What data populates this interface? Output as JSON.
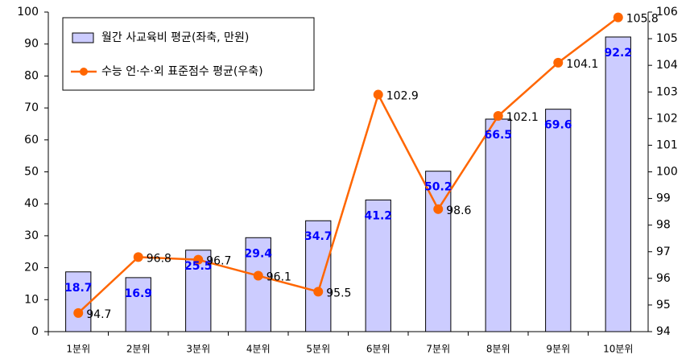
{
  "chart_data": {
    "type": "bar",
    "categories": [
      "1분위",
      "2분위",
      "3분위",
      "4분위",
      "5분위",
      "6분위",
      "7분위",
      "8분위",
      "9분위",
      "10분위"
    ],
    "series": [
      {
        "name": "월간 사교육비 평균(좌축, 만원)",
        "type": "bar",
        "color": "#ccccff",
        "values": [
          18.7,
          16.9,
          25.5,
          29.4,
          34.7,
          41.2,
          50.2,
          66.5,
          69.6,
          92.2
        ]
      },
      {
        "name": "수능 언·수·외 표준점수 평균(우축)",
        "type": "line",
        "axis": "y2",
        "color": "#ff6600",
        "values": [
          94.7,
          96.8,
          96.7,
          96.1,
          95.5,
          102.9,
          98.6,
          102.1,
          104.1,
          105.8
        ]
      }
    ],
    "ylim": [
      0,
      100
    ],
    "yticks": [
      0,
      10,
      20,
      30,
      40,
      50,
      60,
      70,
      80,
      90,
      100
    ],
    "y2lim": [
      94,
      106
    ],
    "y2ticks": [
      94,
      95,
      96,
      97,
      98,
      99,
      100,
      101,
      102,
      103,
      104,
      105,
      106
    ],
    "grid": false,
    "legend": "top-left"
  }
}
